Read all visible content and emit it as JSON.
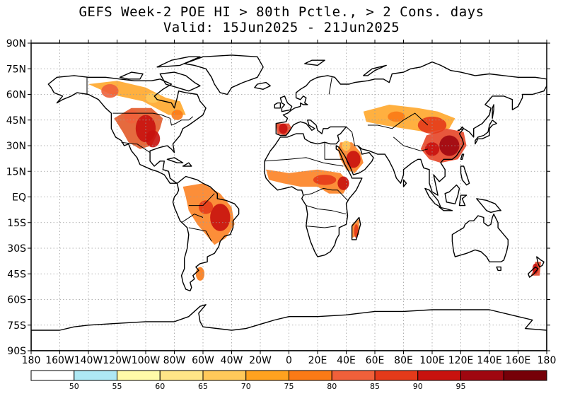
{
  "title": {
    "line1": "GEFS Week-2 POE HI > 80th Pctle., > 2 Cons. days",
    "line2": "Valid: 15Jun2025 - 21Jun2025"
  },
  "map": {
    "projection": "equirectangular",
    "lon_range": [
      -180,
      180
    ],
    "lat_range": [
      -90,
      90
    ],
    "gridlines": "dotted",
    "lat_ticks": [
      "90N",
      "75N",
      "60N",
      "45N",
      "30N",
      "15N",
      "EQ",
      "15S",
      "30S",
      "45S",
      "60S",
      "75S",
      "90S"
    ],
    "lon_ticks": [
      "180",
      "160W",
      "140W",
      "120W",
      "100W",
      "80W",
      "60W",
      "40W",
      "20W",
      "0",
      "20E",
      "40E",
      "60E",
      "80E",
      "100E",
      "120E",
      "140E",
      "160E",
      "180"
    ]
  },
  "colorbar": {
    "colors": [
      "#ffffff",
      "#aee8f4",
      "#fffaa8",
      "#ffe587",
      "#ffc95a",
      "#ffa21f",
      "#fb7a16",
      "#f0603a",
      "#e43a1a",
      "#c8120e",
      "#9f0710",
      "#760008"
    ],
    "labels": [
      "50",
      "55",
      "60",
      "65",
      "70",
      "75",
      "80",
      "85",
      "90",
      "95"
    ]
  },
  "regions": [
    {
      "name": "central-north-america",
      "color": "#e0501c",
      "hot": [
        [
          -100,
          40,
          7,
          8,
          "#c8120e"
        ],
        [
          -110,
          47,
          5,
          4,
          "#f0603a"
        ],
        [
          -95,
          34,
          5,
          5,
          "#c8120e"
        ]
      ]
    },
    {
      "name": "canada-hudson",
      "color": "#ffa21f",
      "hot": [
        [
          -125,
          62,
          6,
          4,
          "#f0603a"
        ],
        [
          -95,
          58,
          5,
          3,
          "#ffc95a"
        ],
        [
          -78,
          48,
          4,
          3,
          "#fb7a16"
        ]
      ]
    },
    {
      "name": "south-america",
      "color": "#fb7a16",
      "hot": [
        [
          -48,
          -12,
          7,
          8,
          "#c8120e"
        ],
        [
          -58,
          -6,
          5,
          4,
          "#e43a1a"
        ],
        [
          -62,
          -45,
          3,
          4,
          "#fb7a16"
        ]
      ]
    },
    {
      "name": "sahel",
      "color": "#fb7a16",
      "hot": [
        [
          25,
          10,
          8,
          3,
          "#e43a1a"
        ],
        [
          38,
          8,
          4,
          4,
          "#c8120e"
        ]
      ]
    },
    {
      "name": "arabia",
      "color": "#fb7a16",
      "hot": [
        [
          45,
          22,
          5,
          5,
          "#c8120e"
        ],
        [
          40,
          30,
          3,
          3,
          "#ffc95a"
        ]
      ]
    },
    {
      "name": "central-asia",
      "color": "#ffa21f",
      "hot": [
        [
          100,
          42,
          10,
          5,
          "#e43a1a"
        ],
        [
          75,
          47,
          6,
          3,
          "#fb7a16"
        ]
      ]
    },
    {
      "name": "east-asia",
      "color": "#e43a1a",
      "hot": [
        [
          112,
          30,
          7,
          6,
          "#9f0710"
        ],
        [
          100,
          28,
          5,
          4,
          "#c8120e"
        ]
      ]
    },
    {
      "name": "iberia",
      "color": "#e43a1a",
      "hot": [
        [
          -4,
          40,
          3,
          3,
          "#c8120e"
        ]
      ]
    },
    {
      "name": "new-zealand",
      "color": "#e43a1a",
      "hot": [
        [
          172,
          -42,
          2,
          3,
          "#c8120e"
        ]
      ]
    },
    {
      "name": "madagascar",
      "color": "#fb7a16",
      "hot": [
        [
          47,
          -20,
          1.5,
          4,
          "#e43a1a"
        ]
      ]
    }
  ]
}
